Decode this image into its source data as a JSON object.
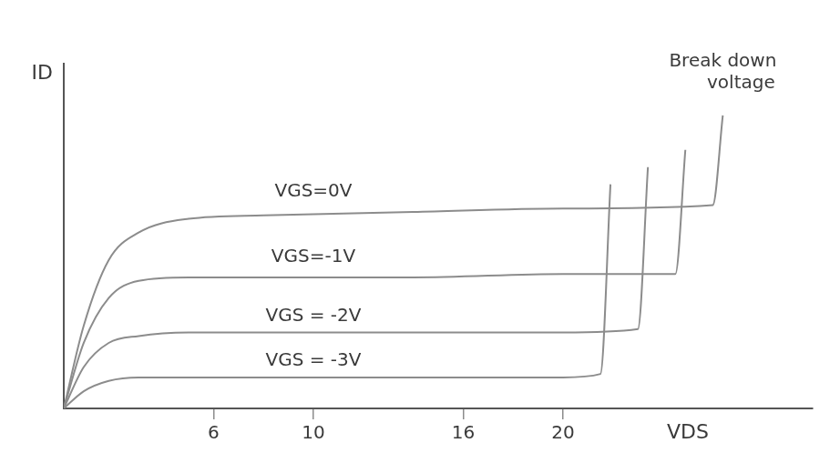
{
  "chart_data": {
    "type": "line",
    "x_label": "VDS",
    "y_label": "ID",
    "annotation": "Break down voltage",
    "xlim": [
      0,
      30
    ],
    "xticks": [
      6,
      10,
      16,
      20
    ],
    "ylim": [
      0,
      10
    ],
    "tick_labels": "x",
    "grid": false,
    "color": "#8c8c8c",
    "series": [
      {
        "name": "VGS=0V",
        "x": [
          0,
          0.8,
          1.8,
          3,
          5,
          8,
          14,
          20,
          26,
          26.4
        ],
        "values": [
          0,
          2.4,
          4.3,
          5.1,
          5.5,
          5.6,
          5.7,
          5.8,
          5.9,
          8.5
        ]
      },
      {
        "name": "VGS=-1V",
        "x": [
          0,
          0.8,
          1.8,
          3,
          5,
          8,
          14,
          20,
          24.5,
          24.9
        ],
        "values": [
          0,
          1.9,
          3.2,
          3.7,
          3.8,
          3.8,
          3.8,
          3.9,
          3.9,
          7.5
        ]
      },
      {
        "name": "VGS = -2V",
        "x": [
          0,
          0.8,
          1.8,
          3,
          5,
          8,
          14,
          20,
          23,
          23.4
        ],
        "values": [
          0,
          1.2,
          1.9,
          2.1,
          2.2,
          2.2,
          2.2,
          2.2,
          2.3,
          7
        ]
      },
      {
        "name": "VGS = -3V",
        "x": [
          0,
          0.8,
          1.8,
          3,
          5,
          8,
          14,
          20,
          21.5,
          21.9
        ],
        "values": [
          0,
          0.5,
          0.8,
          0.9,
          0.9,
          0.9,
          0.9,
          0.9,
          1.0,
          6.5
        ]
      }
    ]
  }
}
